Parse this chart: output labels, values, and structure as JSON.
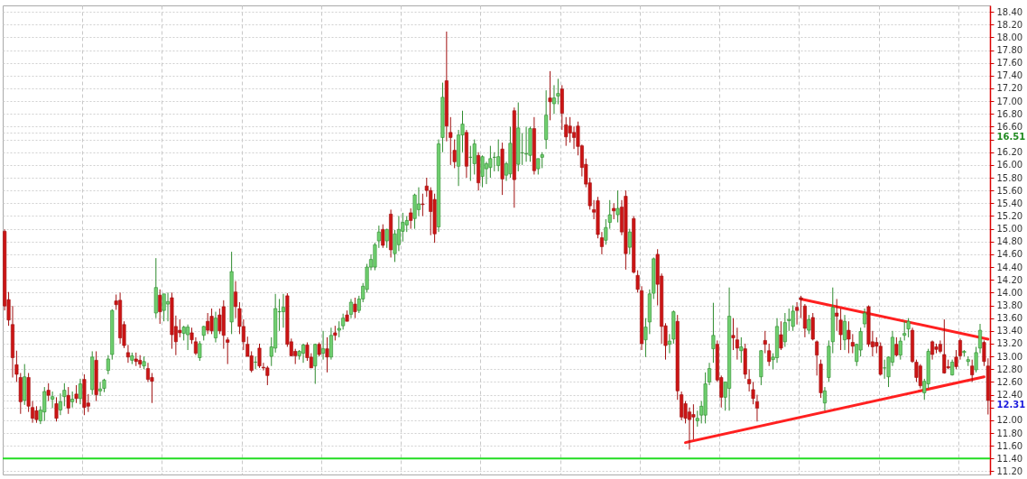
{
  "chart_data": {
    "type": "candlestick",
    "grid": true,
    "categories": [
      null,
      null,
      null,
      null,
      null,
      null,
      null,
      null,
      null,
      null,
      null,
      null,
      null,
      null,
      null,
      null,
      null,
      null,
      null,
      null,
      null,
      null,
      null,
      null,
      null,
      null,
      null,
      null,
      null,
      null,
      null,
      null,
      null,
      null,
      null,
      null,
      null,
      null,
      null,
      null,
      null,
      null,
      null,
      null,
      null,
      null,
      null,
      null,
      null,
      null,
      null,
      null,
      null,
      null,
      null,
      null,
      null,
      null,
      null,
      null,
      null,
      null,
      null,
      null,
      null,
      null,
      null,
      null,
      null,
      null,
      null,
      null,
      null,
      null,
      null,
      null,
      null,
      null,
      null,
      null,
      null,
      null,
      null,
      null,
      null,
      null,
      null,
      null,
      null,
      null,
      null,
      null,
      null,
      null,
      null,
      null,
      null,
      null,
      null,
      null,
      null,
      null,
      null,
      null,
      null,
      null,
      null,
      null,
      null,
      null,
      null,
      null,
      null,
      null,
      null,
      null,
      null,
      null,
      null,
      null,
      null,
      null,
      null,
      null,
      null,
      null,
      null,
      null,
      null,
      null,
      null,
      null,
      null,
      null,
      null,
      null,
      null,
      null,
      null,
      null,
      null,
      null,
      null,
      null,
      null,
      null,
      null,
      null,
      null,
      null,
      null,
      null,
      null,
      null,
      null,
      null,
      null,
      null,
      null,
      null,
      null,
      null,
      null,
      null,
      null,
      null,
      null,
      null,
      null,
      null,
      null,
      null,
      null,
      null,
      null,
      null,
      null,
      null,
      null,
      null,
      null,
      null,
      null,
      null,
      null,
      null,
      null,
      null,
      null,
      null,
      null,
      null,
      null,
      null,
      null,
      null,
      null,
      null,
      null,
      null,
      null,
      null,
      null,
      null,
      null,
      null,
      null,
      null,
      null,
      null,
      null,
      null,
      null,
      null,
      null,
      null,
      null,
      null,
      null,
      null,
      null,
      null,
      null,
      null,
      null,
      null,
      null,
      null,
      null,
      null,
      null,
      null,
      null,
      null,
      null,
      null,
      null,
      null,
      null,
      null,
      null,
      null,
      null,
      null,
      null,
      null,
      null,
      null
    ],
    "ohlc": [
      [
        14.96,
        14.99,
        13.72,
        13.79
      ],
      [
        13.89,
        14.01,
        13.48,
        13.57
      ],
      [
        13.5,
        13.79,
        12.67,
        12.98
      ],
      [
        12.87,
        13.09,
        12.6,
        12.72
      ],
      [
        12.67,
        12.74,
        12.1,
        12.29
      ],
      [
        12.31,
        12.88,
        12.24,
        12.68
      ],
      [
        12.67,
        12.74,
        12.13,
        12.22
      ],
      [
        12.2,
        12.3,
        11.96,
        12.03
      ],
      [
        12.15,
        12.22,
        11.96,
        12.01
      ],
      [
        11.99,
        12.22,
        11.94,
        12.16
      ],
      [
        12.13,
        12.52,
        11.99,
        12.45
      ],
      [
        12.47,
        12.58,
        12.3,
        12.39
      ],
      [
        12.33,
        12.45,
        12.19,
        12.37
      ],
      [
        12.26,
        12.36,
        11.98,
        12.03
      ],
      [
        12.16,
        12.42,
        12.08,
        12.29
      ],
      [
        12.37,
        12.58,
        12.22,
        12.47
      ],
      [
        12.39,
        12.52,
        12.1,
        12.19
      ],
      [
        12.29,
        12.45,
        12.2,
        12.33
      ],
      [
        12.41,
        12.55,
        12.27,
        12.34
      ],
      [
        12.34,
        12.65,
        12.25,
        12.57
      ],
      [
        12.64,
        12.72,
        12.08,
        12.2
      ],
      [
        12.27,
        12.41,
        12.13,
        12.22
      ],
      [
        12.48,
        13.08,
        12.4,
        12.99
      ],
      [
        12.94,
        13.08,
        12.3,
        12.4
      ],
      [
        12.46,
        12.6,
        12.38,
        12.49
      ],
      [
        12.5,
        12.65,
        12.44,
        12.63
      ],
      [
        12.78,
        13.02,
        12.72,
        12.96
      ],
      [
        13.03,
        13.74,
        12.95,
        13.72
      ],
      [
        13.87,
        13.97,
        13.73,
        13.81
      ],
      [
        13.88,
        14.0,
        13.2,
        13.29
      ],
      [
        13.5,
        13.55,
        13.13,
        13.17
      ],
      [
        13.06,
        13.18,
        12.9,
        12.99
      ],
      [
        12.94,
        13.06,
        12.88,
        13.01
      ],
      [
        12.96,
        13.06,
        12.85,
        12.92
      ],
      [
        12.94,
        13.02,
        12.82,
        12.88
      ],
      [
        12.85,
        13.0,
        12.8,
        12.92
      ],
      [
        12.81,
        12.9,
        12.6,
        12.64
      ],
      [
        12.67,
        12.74,
        12.27,
        12.61
      ],
      [
        13.68,
        14.54,
        13.6,
        14.08
      ],
      [
        13.96,
        14.05,
        13.51,
        13.7
      ],
      [
        13.72,
        13.98,
        13.55,
        13.98
      ],
      [
        13.82,
        14.0,
        13.55,
        13.86
      ],
      [
        13.92,
        14.0,
        13.12,
        13.34
      ],
      [
        13.47,
        13.64,
        13.02,
        13.23
      ],
      [
        13.41,
        13.58,
        13.3,
        13.37
      ],
      [
        13.36,
        13.48,
        13.25,
        13.46
      ],
      [
        13.34,
        13.5,
        13.1,
        13.46
      ],
      [
        13.37,
        13.45,
        13.2,
        13.26
      ],
      [
        13.23,
        13.3,
        13.02,
        13.05
      ],
      [
        12.98,
        13.24,
        12.93,
        13.2
      ],
      [
        13.33,
        13.48,
        13.25,
        13.47
      ],
      [
        13.55,
        13.68,
        13.35,
        13.41
      ],
      [
        13.63,
        13.75,
        13.35,
        13.4
      ],
      [
        13.29,
        13.7,
        13.22,
        13.6
      ],
      [
        13.65,
        13.75,
        13.35,
        13.4
      ],
      [
        13.78,
        13.88,
        13.12,
        13.33
      ],
      [
        13.26,
        13.3,
        12.88,
        13.22
      ],
      [
        13.54,
        14.64,
        13.35,
        14.33
      ],
      [
        14.01,
        14.18,
        13.6,
        13.78
      ],
      [
        13.75,
        13.85,
        13.35,
        13.47
      ],
      [
        13.47,
        13.58,
        13.1,
        13.23
      ],
      [
        13.19,
        13.31,
        13.0,
        13.0
      ],
      [
        13.01,
        13.08,
        12.75,
        12.78
      ],
      [
        12.91,
        13.0,
        12.8,
        12.91
      ],
      [
        13.13,
        13.2,
        12.82,
        12.85
      ],
      [
        12.83,
        12.9,
        12.78,
        12.82
      ],
      [
        12.82,
        12.85,
        12.55,
        12.7
      ],
      [
        13.0,
        13.3,
        12.85,
        13.15
      ],
      [
        13.13,
        13.98,
        13.06,
        13.75
      ],
      [
        13.7,
        13.9,
        13.4,
        13.7
      ],
      [
        13.7,
        13.98,
        13.45,
        13.77
      ],
      [
        13.95,
        13.99,
        13.15,
        13.19
      ],
      [
        13.23,
        13.28,
        13.0,
        13.01
      ],
      [
        13.08,
        13.12,
        12.88,
        13.01
      ],
      [
        13.01,
        13.1,
        12.95,
        13.08
      ],
      [
        13.05,
        13.2,
        12.9,
        13.18
      ],
      [
        13.18,
        13.22,
        12.93,
        12.98
      ],
      [
        12.99,
        13.05,
        12.82,
        12.82
      ],
      [
        12.85,
        13.2,
        12.57,
        13.19
      ],
      [
        13.19,
        13.22,
        13.0,
        13.03
      ],
      [
        13.05,
        13.4,
        12.95,
        13.12
      ],
      [
        13.12,
        13.3,
        12.75,
        12.99
      ],
      [
        12.99,
        13.45,
        12.95,
        13.33
      ],
      [
        13.37,
        13.48,
        13.25,
        13.33
      ],
      [
        13.41,
        13.55,
        13.3,
        13.44
      ],
      [
        13.48,
        13.67,
        13.42,
        13.6
      ],
      [
        13.65,
        13.72,
        13.55,
        13.55
      ],
      [
        13.66,
        13.9,
        13.6,
        13.85
      ],
      [
        13.82,
        13.92,
        13.6,
        13.7
      ],
      [
        13.72,
        13.95,
        13.68,
        13.9
      ],
      [
        13.9,
        14.15,
        13.85,
        14.1
      ],
      [
        14.05,
        14.45,
        14.0,
        14.4
      ],
      [
        14.4,
        14.6,
        14.35,
        14.52
      ],
      [
        14.4,
        14.78,
        14.35,
        14.75
      ],
      [
        14.81,
        15.05,
        14.7,
        14.95
      ],
      [
        14.99,
        15.07,
        14.7,
        14.74
      ],
      [
        14.81,
        15.0,
        14.7,
        14.99
      ],
      [
        15.23,
        15.3,
        14.55,
        14.67
      ],
      [
        14.61,
        14.98,
        14.48,
        14.92
      ],
      [
        14.75,
        15.2,
        14.65,
        14.99
      ],
      [
        14.96,
        15.25,
        14.8,
        15.1
      ],
      [
        15.06,
        15.2,
        14.95,
        15.13
      ],
      [
        15.25,
        15.32,
        15.0,
        15.13
      ],
      [
        15.16,
        15.55,
        15.0,
        15.53
      ],
      [
        15.3,
        15.65,
        15.2,
        15.39
      ],
      [
        15.39,
        15.55,
        15.2,
        15.38
      ],
      [
        15.67,
        15.8,
        15.5,
        15.6
      ],
      [
        15.6,
        15.65,
        14.9,
        15.27
      ],
      [
        15.46,
        15.55,
        14.78,
        14.92
      ],
      [
        15.03,
        16.4,
        14.95,
        16.33
      ],
      [
        16.43,
        17.29,
        16.2,
        17.06
      ],
      [
        17.32,
        18.09,
        16.37,
        16.61
      ],
      [
        16.51,
        16.75,
        16.0,
        16.43
      ],
      [
        16.23,
        16.4,
        15.95,
        16.05
      ],
      [
        15.98,
        16.55,
        15.67,
        16.47
      ],
      [
        16.47,
        16.85,
        16.2,
        16.64
      ],
      [
        16.51,
        16.55,
        15.8,
        15.98
      ],
      [
        16.12,
        16.3,
        15.75,
        16.12
      ],
      [
        16.02,
        16.4,
        15.85,
        16.33
      ],
      [
        16.15,
        16.2,
        15.6,
        15.72
      ],
      [
        15.82,
        16.15,
        15.65,
        16.13
      ],
      [
        15.94,
        16.05,
        15.7,
        16.02
      ],
      [
        15.96,
        16.3,
        15.8,
        16.1
      ],
      [
        16.12,
        16.2,
        15.9,
        16.12
      ],
      [
        15.99,
        16.4,
        15.9,
        16.13
      ],
      [
        16.25,
        16.35,
        15.53,
        15.78
      ],
      [
        15.84,
        16.05,
        15.75,
        16.02
      ],
      [
        15.86,
        16.6,
        15.8,
        16.34
      ],
      [
        16.85,
        16.9,
        15.33,
        15.77
      ],
      [
        16.01,
        16.98,
        15.9,
        16.58
      ],
      [
        16.19,
        16.5,
        16.0,
        16.19
      ],
      [
        16.17,
        16.6,
        16.05,
        16.18
      ],
      [
        16.15,
        16.6,
        16.05,
        16.57
      ],
      [
        16.57,
        16.75,
        15.85,
        15.91
      ],
      [
        15.94,
        16.1,
        15.85,
        16.1
      ],
      [
        16.12,
        16.2,
        15.95,
        16.16
      ],
      [
        16.4,
        17.17,
        16.25,
        16.78
      ],
      [
        17.05,
        17.47,
        16.7,
        16.99
      ],
      [
        16.96,
        17.25,
        16.8,
        17.05
      ],
      [
        17.08,
        17.35,
        16.95,
        17.12
      ],
      [
        17.19,
        17.25,
        16.55,
        16.81
      ],
      [
        16.63,
        16.75,
        16.3,
        16.44
      ],
      [
        16.61,
        16.75,
        16.35,
        16.5
      ],
      [
        16.51,
        16.6,
        16.25,
        16.43
      ],
      [
        16.61,
        16.68,
        16.15,
        16.29
      ],
      [
        16.3,
        16.32,
        15.82,
        15.96
      ],
      [
        16.01,
        16.1,
        15.65,
        15.7
      ],
      [
        15.72,
        15.8,
        15.3,
        15.36
      ],
      [
        15.3,
        15.45,
        15.15,
        15.26
      ],
      [
        15.44,
        15.5,
        14.85,
        14.91
      ],
      [
        14.86,
        14.95,
        14.6,
        14.72
      ],
      [
        14.82,
        15.15,
        14.75,
        15.02
      ],
      [
        15.1,
        15.45,
        15.0,
        15.22
      ],
      [
        15.32,
        15.4,
        15.15,
        15.28
      ],
      [
        15.22,
        15.6,
        15.1,
        15.32
      ],
      [
        15.34,
        15.45,
        14.9,
        14.95
      ],
      [
        15.51,
        15.6,
        14.36,
        14.61
      ],
      [
        14.71,
        15.0,
        14.6,
        14.95
      ],
      [
        15.16,
        15.2,
        14.3,
        14.32
      ],
      [
        14.27,
        14.35,
        14.0,
        14.05
      ],
      [
        14.03,
        14.1,
        13.1,
        13.2
      ],
      [
        13.26,
        13.6,
        12.99,
        13.46
      ],
      [
        13.54,
        14.05,
        13.35,
        13.98
      ],
      [
        13.99,
        14.55,
        13.9,
        14.53
      ],
      [
        14.6,
        14.68,
        13.8,
        14.13
      ],
      [
        14.26,
        14.3,
        13.2,
        13.47
      ],
      [
        13.48,
        13.52,
        12.95,
        13.17
      ],
      [
        13.19,
        13.35,
        13.05,
        13.24
      ],
      [
        13.27,
        13.72,
        13.2,
        13.7
      ],
      [
        13.55,
        13.65,
        12.32,
        12.46
      ],
      [
        12.4,
        12.45,
        12.0,
        12.05
      ],
      [
        12.26,
        12.3,
        11.95,
        12.03
      ],
      [
        12.13,
        12.2,
        11.54,
        12.01
      ],
      [
        12.09,
        12.25,
        11.7,
        12.05
      ],
      [
        11.99,
        12.15,
        11.9,
        12.03
      ],
      [
        12.08,
        12.3,
        11.95,
        12.22
      ],
      [
        12.08,
        12.75,
        11.95,
        12.57
      ],
      [
        12.6,
        12.9,
        12.55,
        12.81
      ],
      [
        13.12,
        13.84,
        12.9,
        13.33
      ],
      [
        13.19,
        13.25,
        12.6,
        12.63
      ],
      [
        12.67,
        12.7,
        12.2,
        12.36
      ],
      [
        12.36,
        12.6,
        12.15,
        12.6
      ],
      [
        12.5,
        14.08,
        12.15,
        13.63
      ],
      [
        13.33,
        13.6,
        13.1,
        13.29
      ],
      [
        13.26,
        13.45,
        12.95,
        13.13
      ],
      [
        13.09,
        13.3,
        12.9,
        13.15
      ],
      [
        13.12,
        13.2,
        12.65,
        12.72
      ],
      [
        12.64,
        12.8,
        12.45,
        12.57
      ],
      [
        12.48,
        12.6,
        12.25,
        12.34
      ],
      [
        12.29,
        12.4,
        11.98,
        12.19
      ],
      [
        12.68,
        13.1,
        12.55,
        13.09
      ],
      [
        13.25,
        13.4,
        13.05,
        13.19
      ],
      [
        13.09,
        13.2,
        12.85,
        12.92
      ],
      [
        12.95,
        13.05,
        12.8,
        12.99
      ],
      [
        12.98,
        13.6,
        12.9,
        13.47
      ],
      [
        13.34,
        13.55,
        13.1,
        13.13
      ],
      [
        13.23,
        13.68,
        13.15,
        13.53
      ],
      [
        13.56,
        13.75,
        13.4,
        13.58
      ],
      [
        13.47,
        13.8,
        13.4,
        13.71
      ],
      [
        13.77,
        13.85,
        13.5,
        13.72
      ],
      [
        13.92,
        13.95,
        13.6,
        13.89
      ],
      [
        13.79,
        13.82,
        13.3,
        13.44
      ],
      [
        13.41,
        13.65,
        13.35,
        13.58
      ],
      [
        13.61,
        13.68,
        13.25,
        13.27
      ],
      [
        13.23,
        13.25,
        12.7,
        13.02
      ],
      [
        12.88,
        12.95,
        12.35,
        12.43
      ],
      [
        12.27,
        12.52,
        12.15,
        12.46
      ],
      [
        12.67,
        13.25,
        12.6,
        13.16
      ],
      [
        13.23,
        14.08,
        13.05,
        13.77
      ],
      [
        13.68,
        13.9,
        13.4,
        13.63
      ],
      [
        13.57,
        13.75,
        13.1,
        13.34
      ],
      [
        13.26,
        13.65,
        13.1,
        13.55
      ],
      [
        13.41,
        13.55,
        13.05,
        13.27
      ],
      [
        13.22,
        13.35,
        13.05,
        13.16
      ],
      [
        12.92,
        13.2,
        12.85,
        13.19
      ],
      [
        13.1,
        13.45,
        13.0,
        13.39
      ],
      [
        13.51,
        13.75,
        13.45,
        13.68
      ],
      [
        13.78,
        13.8,
        13.15,
        13.19
      ],
      [
        13.23,
        13.4,
        13.0,
        13.15
      ],
      [
        13.22,
        13.3,
        13.05,
        13.16
      ],
      [
        13.16,
        13.22,
        12.7,
        12.72
      ],
      [
        12.82,
        12.95,
        12.65,
        12.82
      ],
      [
        12.68,
        13.0,
        12.52,
        12.99
      ],
      [
        12.91,
        13.4,
        12.85,
        13.3
      ],
      [
        13.19,
        13.3,
        13.0,
        13.02
      ],
      [
        13.02,
        13.3,
        12.95,
        13.24
      ],
      [
        13.33,
        13.55,
        13.25,
        13.36
      ],
      [
        13.43,
        13.6,
        13.3,
        13.55
      ],
      [
        13.41,
        13.45,
        12.9,
        12.92
      ],
      [
        12.91,
        12.95,
        12.6,
        12.67
      ],
      [
        12.85,
        12.88,
        12.5,
        12.54
      ],
      [
        12.43,
        12.65,
        12.32,
        12.61
      ],
      [
        12.57,
        13.12,
        12.5,
        13.08
      ],
      [
        13.23,
        13.25,
        12.95,
        13.03
      ],
      [
        13.15,
        13.2,
        13.05,
        13.11
      ],
      [
        13.19,
        13.25,
        13.05,
        13.08
      ],
      [
        13.03,
        13.58,
        12.73,
        12.74
      ],
      [
        12.84,
        12.95,
        12.8,
        12.82
      ],
      [
        12.71,
        12.95,
        12.7,
        12.91
      ],
      [
        12.99,
        13.1,
        12.8,
        12.84
      ],
      [
        13.25,
        13.28,
        12.95,
        13.01
      ],
      [
        13.06,
        13.1,
        13.0,
        13.08
      ],
      [
        12.92,
        13.0,
        12.85,
        12.95
      ],
      [
        12.85,
        12.95,
        12.6,
        12.71
      ],
      [
        12.79,
        13.15,
        12.75,
        13.06
      ],
      [
        13.13,
        13.51,
        13.05,
        13.41
      ],
      [
        13.22,
        13.25,
        12.85,
        12.92
      ],
      [
        12.85,
        12.97,
        12.09,
        12.31
      ]
    ],
    "series": [
      {
        "type": "line",
        "color": "#ff2020",
        "values": [
          null,
          null,
          null,
          null,
          null,
          null,
          null,
          null,
          null,
          null,
          null,
          null,
          null,
          null,
          null,
          null,
          null,
          null,
          null,
          null,
          null,
          null,
          null,
          null,
          null,
          null,
          null,
          null,
          null,
          null,
          null,
          null,
          null,
          null,
          null,
          null,
          null,
          null,
          null,
          null,
          null,
          null,
          null,
          null,
          null,
          null,
          null,
          null,
          null,
          null,
          null,
          null,
          null,
          null,
          null,
          null,
          null,
          null,
          null,
          null,
          null,
          null,
          null,
          null,
          null,
          null,
          null,
          null,
          null,
          null,
          null,
          null,
          null,
          null,
          null,
          null,
          null,
          null,
          null,
          null,
          null,
          null,
          null,
          null,
          null,
          null,
          null,
          null,
          null,
          null,
          null,
          null,
          null,
          null,
          null,
          null,
          null,
          null,
          null,
          null,
          null,
          null,
          null,
          null,
          null,
          null,
          null,
          null,
          null,
          null,
          null,
          null,
          null,
          null,
          null,
          null,
          null,
          null,
          null,
          null,
          null,
          null,
          null,
          null,
          null,
          null,
          null,
          null,
          null,
          null,
          null,
          null,
          null,
          null,
          null,
          null,
          null,
          null,
          null,
          null,
          null,
          null,
          null,
          null,
          null,
          null,
          null,
          null,
          null,
          null,
          null,
          null,
          null,
          null,
          null,
          null,
          null,
          null,
          null,
          null,
          null,
          null,
          null,
          null,
          null,
          null,
          null,
          null,
          null,
          null,
          null,
          11.65,
          null,
          null,
          null,
          null,
          null,
          null,
          null,
          null,
          null,
          null,
          null,
          null,
          null,
          null,
          null,
          null,
          null,
          null,
          null,
          null,
          null,
          null,
          null,
          null,
          null,
          null,
          null,
          null,
          null,
          null,
          null,
          null,
          null,
          null,
          null,
          null,
          null,
          null,
          null,
          null,
          null,
          null,
          null,
          null,
          null,
          null,
          null,
          null,
          null,
          null,
          null,
          null,
          null,
          null,
          null,
          null,
          null,
          null,
          null,
          null,
          null,
          null,
          null,
          null,
          null,
          null,
          null,
          null,
          null,
          null,
          null,
          null,
          null,
          null,
          12.68,
          null
        ]
      },
      {
        "type": "line",
        "color": "#ff2020",
        "values": [
          null,
          null,
          null,
          null,
          null,
          null,
          null,
          null,
          null,
          null,
          null,
          null,
          null,
          null,
          null,
          null,
          null,
          null,
          null,
          null,
          null,
          null,
          null,
          null,
          null,
          null,
          null,
          null,
          null,
          null,
          null,
          null,
          null,
          null,
          null,
          null,
          null,
          null,
          null,
          null,
          null,
          null,
          null,
          null,
          null,
          null,
          null,
          null,
          null,
          null,
          null,
          null,
          null,
          null,
          null,
          null,
          null,
          null,
          null,
          null,
          null,
          null,
          null,
          null,
          null,
          null,
          null,
          null,
          null,
          null,
          null,
          null,
          null,
          null,
          null,
          null,
          null,
          null,
          null,
          null,
          null,
          null,
          null,
          null,
          null,
          null,
          null,
          null,
          null,
          null,
          null,
          null,
          null,
          null,
          null,
          null,
          null,
          null,
          null,
          null,
          null,
          null,
          null,
          null,
          null,
          null,
          null,
          null,
          null,
          null,
          null,
          null,
          null,
          null,
          null,
          null,
          null,
          null,
          null,
          null,
          null,
          null,
          null,
          null,
          null,
          null,
          null,
          null,
          null,
          null,
          null,
          null,
          null,
          null,
          null,
          null,
          null,
          null,
          null,
          null,
          null,
          null,
          null,
          null,
          null,
          null,
          null,
          null,
          null,
          null,
          null,
          null,
          null,
          null,
          null,
          null,
          null,
          null,
          null,
          null,
          null,
          null,
          null,
          null,
          null,
          null,
          null,
          null,
          null,
          null,
          null,
          null,
          null,
          null,
          null,
          null,
          null,
          null,
          null,
          null,
          null,
          null,
          null,
          null,
          null,
          null,
          null,
          null,
          null,
          null,
          null,
          null,
          null,
          null,
          null,
          null,
          null,
          null,
          null,
          null,
          13.9,
          null,
          null,
          null,
          null,
          null,
          null,
          null,
          null,
          null,
          null,
          null,
          null,
          null,
          null,
          null,
          null,
          null,
          null,
          null,
          null,
          null,
          null,
          null,
          null,
          null,
          null,
          null,
          null,
          null,
          null,
          null,
          null,
          null,
          null,
          null,
          null,
          null,
          null,
          null,
          null,
          null,
          null,
          null,
          null,
          null,
          null,
          13.27
        ]
      }
    ],
    "ref_lines": [
      {
        "axis": "y",
        "value": 11.4,
        "color": "#22dd22"
      }
    ],
    "ylim": [
      11.15,
      18.5
    ],
    "yticks": [
      {
        "value": 11.2,
        "label": "11.20"
      },
      {
        "value": 11.4,
        "label": "11.40"
      },
      {
        "value": 11.6,
        "label": "11.60"
      },
      {
        "value": 11.8,
        "label": "11.80"
      },
      {
        "value": 12,
        "label": "12.00"
      },
      {
        "value": 12.2,
        "label": null
      },
      {
        "value": 12.31,
        "label": "12.31"
      },
      {
        "value": 12.4,
        "label": "12.40"
      },
      {
        "value": 12.6,
        "label": "12.60"
      },
      {
        "value": 12.8,
        "label": "12.80"
      },
      {
        "value": 13,
        "label": "13.00"
      },
      {
        "value": 13.2,
        "label": "13.20"
      },
      {
        "value": 13.4,
        "label": "13.40"
      },
      {
        "value": 13.6,
        "label": "13.60"
      },
      {
        "value": 13.8,
        "label": "13.80"
      },
      {
        "value": 14,
        "label": "14.00"
      },
      {
        "value": 14.2,
        "label": "14.20"
      },
      {
        "value": 14.4,
        "label": "14.40"
      },
      {
        "value": 14.6,
        "label": "14.60"
      },
      {
        "value": 14.8,
        "label": "14.80"
      },
      {
        "value": 15,
        "label": "15.00"
      },
      {
        "value": 15.2,
        "label": "15.20"
      },
      {
        "value": 15.4,
        "label": "15.40"
      },
      {
        "value": 15.6,
        "label": "15.60"
      },
      {
        "value": 15.8,
        "label": "15.80"
      },
      {
        "value": 16,
        "label": "16.00"
      },
      {
        "value": 16.2,
        "label": "16.20"
      },
      {
        "value": 16.4,
        "label": null
      },
      {
        "value": 16.51,
        "label": "16.51"
      },
      {
        "value": 16.6,
        "label": "16.60"
      },
      {
        "value": 16.8,
        "label": "16.80"
      },
      {
        "value": 17,
        "label": "17.00"
      },
      {
        "value": 17.2,
        "label": "17.20"
      },
      {
        "value": 17.4,
        "label": "17.40"
      },
      {
        "value": 17.6,
        "label": "17.60"
      },
      {
        "value": 17.8,
        "label": "17.80"
      },
      {
        "value": 18,
        "label": "18.00"
      },
      {
        "value": 18.2,
        "label": "18.20"
      },
      {
        "value": 18.4,
        "label": "18.40"
      }
    ]
  }
}
